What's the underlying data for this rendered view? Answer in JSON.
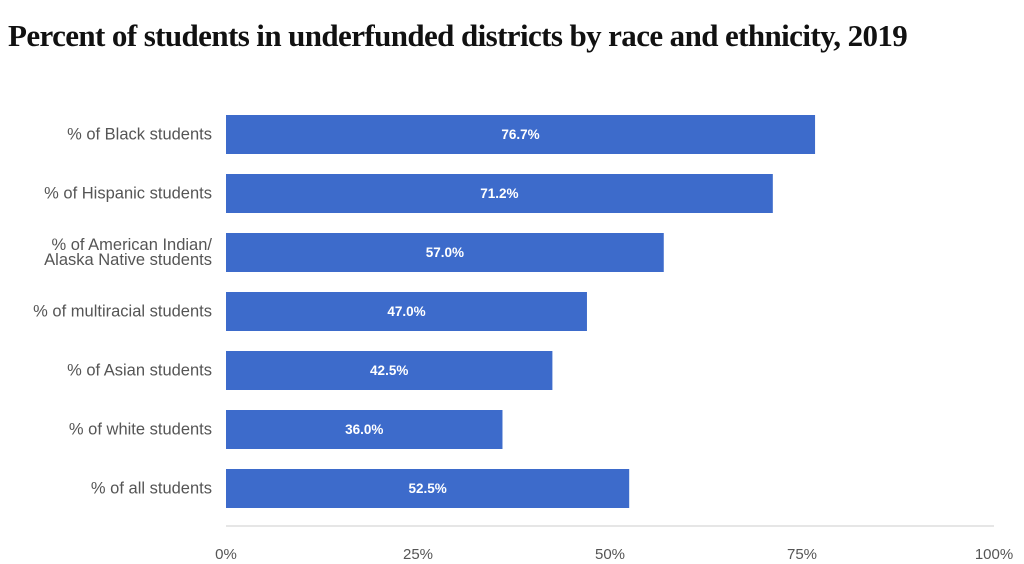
{
  "chart_data": {
    "type": "bar",
    "orientation": "horizontal",
    "title": "Percent of students in underfunded districts by race and ethnicity, 2019",
    "categories": [
      [
        "% of Black students"
      ],
      [
        "% of Hispanic students"
      ],
      [
        "% of American Indian/",
        "Alaska Native students"
      ],
      [
        "% of multiracial students"
      ],
      [
        "% of Asian students"
      ],
      [
        "% of white students"
      ],
      [
        "% of all students"
      ]
    ],
    "values": [
      76.7,
      71.2,
      57.0,
      47.0,
      42.5,
      36.0,
      52.5
    ],
    "value_labels": [
      "76.7%",
      "71.2%",
      "57.0%",
      "47.0%",
      "42.5%",
      "36.0%",
      "52.5%"
    ],
    "xlim": [
      0,
      100
    ],
    "xticks": [
      0,
      25,
      50,
      75,
      100
    ],
    "xtick_labels": [
      "0%",
      "25%",
      "50%",
      "75%",
      "100%"
    ],
    "xlabel": "",
    "ylabel": "",
    "grid": false,
    "legend": "none",
    "bar_color": "#3d6bcb",
    "axis_color": "#cccccc"
  }
}
